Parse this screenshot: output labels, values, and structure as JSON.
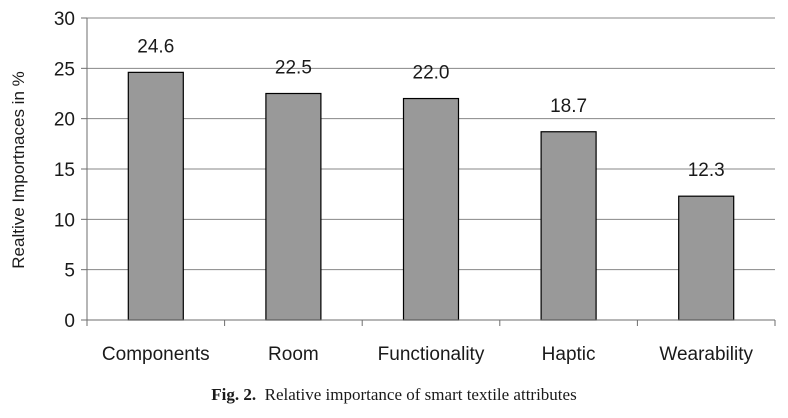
{
  "chart_data": {
    "type": "bar",
    "categories": [
      "Components",
      "Room",
      "Functionality",
      "Haptic",
      "Wearability"
    ],
    "values": [
      24.6,
      22.5,
      22.0,
      18.7,
      12.3
    ],
    "data_labels": [
      "24.6",
      "22.5",
      "22.0",
      "18.7",
      "12.3"
    ],
    "ylabel": "Realtive Importnaces  in %",
    "xlabel": "",
    "ylim": [
      0,
      30
    ],
    "yticks": [
      "0",
      "5",
      "10",
      "15",
      "20",
      "25",
      "30"
    ],
    "grid": true,
    "legend": "none",
    "bar_color": "#999999",
    "grid_color": "#878787"
  },
  "caption": {
    "label": "Fig. 2.",
    "text": "Relative importance of smart textile attributes"
  }
}
